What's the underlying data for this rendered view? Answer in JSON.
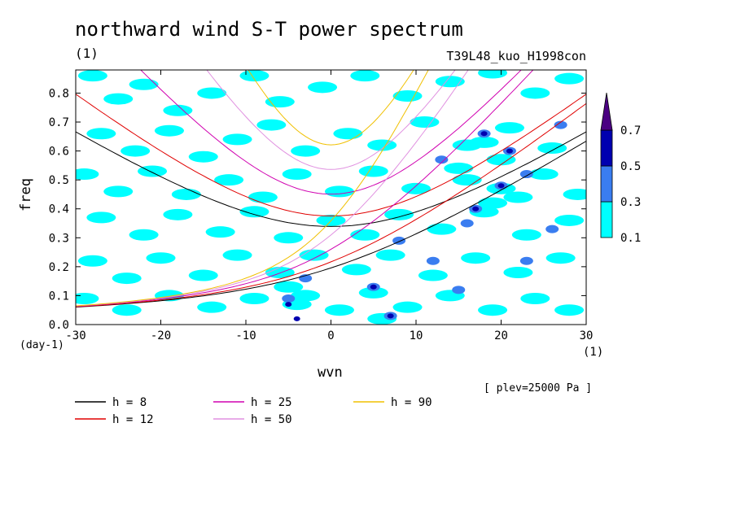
{
  "chart_data": {
    "type": "heatmap",
    "title": "northward wind S-T power spectrum",
    "subtitle": "T39L48_kuo_H1998con",
    "units_label": "(1)",
    "xlabel": "wvn",
    "ylabel": "freq",
    "x_unit": "(1)",
    "y_unit": "(day-1)",
    "annotation": "[ plev=25000 Pa ]",
    "xlim": [
      -30,
      30
    ],
    "ylim": [
      0,
      0.88
    ],
    "x_ticks": [
      -30,
      -20,
      -10,
      0,
      10,
      20,
      30
    ],
    "x_tick_labels": [
      "-30",
      "-20",
      "-10",
      "0",
      "10",
      "20",
      "30"
    ],
    "y_ticks": [
      0,
      0.1,
      0.2,
      0.3,
      0.4,
      0.5,
      0.6,
      0.7,
      0.8
    ],
    "y_tick_labels": [
      "0.0",
      "0.1",
      "0.2",
      "0.3",
      "0.4",
      "0.5",
      "0.6",
      "0.7",
      "0.8"
    ],
    "colorbar": {
      "levels": [
        0.1,
        0.3,
        0.5,
        0.7
      ],
      "labels": [
        "0.1",
        "0.3",
        "0.5",
        "0.7"
      ],
      "colors": [
        "#00ffff",
        "#3a7df0",
        "#0000b0",
        "#4b0082"
      ]
    },
    "dispersion_curves": [
      {
        "name": "h =  8",
        "h": 8,
        "color": "#000000"
      },
      {
        "name": "h = 12",
        "h": 12,
        "color": "#e00000"
      },
      {
        "name": "h = 25",
        "h": 25,
        "color": "#d000b0"
      },
      {
        "name": "h = 50",
        "h": 50,
        "color": "#e090e0"
      },
      {
        "name": "h = 90",
        "h": 90,
        "color": "#f0c000"
      }
    ],
    "spectral_blobs": [
      {
        "x": -28,
        "y": 0.86,
        "level": 1
      },
      {
        "x": -25,
        "y": 0.78,
        "level": 1
      },
      {
        "x": -22,
        "y": 0.83,
        "level": 1
      },
      {
        "x": -18,
        "y": 0.74,
        "level": 1
      },
      {
        "x": -14,
        "y": 0.8,
        "level": 1
      },
      {
        "x": -9,
        "y": 0.86,
        "level": 1
      },
      {
        "x": -6,
        "y": 0.77,
        "level": 1
      },
      {
        "x": -1,
        "y": 0.82,
        "level": 1
      },
      {
        "x": 4,
        "y": 0.86,
        "level": 1
      },
      {
        "x": 9,
        "y": 0.79,
        "level": 1
      },
      {
        "x": 14,
        "y": 0.84,
        "level": 1
      },
      {
        "x": 19,
        "y": 0.87,
        "level": 1
      },
      {
        "x": 24,
        "y": 0.8,
        "level": 1
      },
      {
        "x": 28,
        "y": 0.85,
        "level": 1
      },
      {
        "x": -27,
        "y": 0.66,
        "level": 1
      },
      {
        "x": -23,
        "y": 0.6,
        "level": 1
      },
      {
        "x": -19,
        "y": 0.67,
        "level": 1
      },
      {
        "x": -15,
        "y": 0.58,
        "level": 1
      },
      {
        "x": -11,
        "y": 0.64,
        "level": 1
      },
      {
        "x": -7,
        "y": 0.69,
        "level": 1
      },
      {
        "x": -3,
        "y": 0.6,
        "level": 1
      },
      {
        "x": 2,
        "y": 0.66,
        "level": 1
      },
      {
        "x": 6,
        "y": 0.62,
        "level": 1
      },
      {
        "x": 11,
        "y": 0.7,
        "level": 1
      },
      {
        "x": 16,
        "y": 0.62,
        "level": 1
      },
      {
        "x": 21,
        "y": 0.68,
        "level": 1
      },
      {
        "x": 26,
        "y": 0.61,
        "level": 1
      },
      {
        "x": -29,
        "y": 0.52,
        "level": 1
      },
      {
        "x": -25,
        "y": 0.46,
        "level": 1
      },
      {
        "x": -21,
        "y": 0.53,
        "level": 1
      },
      {
        "x": -17,
        "y": 0.45,
        "level": 1
      },
      {
        "x": -12,
        "y": 0.5,
        "level": 1
      },
      {
        "x": -8,
        "y": 0.44,
        "level": 1
      },
      {
        "x": -4,
        "y": 0.52,
        "level": 1
      },
      {
        "x": 1,
        "y": 0.46,
        "level": 1
      },
      {
        "x": 5,
        "y": 0.53,
        "level": 1
      },
      {
        "x": 10,
        "y": 0.47,
        "level": 1
      },
      {
        "x": 15,
        "y": 0.54,
        "level": 1
      },
      {
        "x": 20,
        "y": 0.47,
        "level": 1
      },
      {
        "x": 25,
        "y": 0.52,
        "level": 1
      },
      {
        "x": 29,
        "y": 0.45,
        "level": 1
      },
      {
        "x": -27,
        "y": 0.37,
        "level": 1
      },
      {
        "x": -22,
        "y": 0.31,
        "level": 1
      },
      {
        "x": -18,
        "y": 0.38,
        "level": 1
      },
      {
        "x": -13,
        "y": 0.32,
        "level": 1
      },
      {
        "x": -9,
        "y": 0.39,
        "level": 1
      },
      {
        "x": -5,
        "y": 0.3,
        "level": 1
      },
      {
        "x": 0,
        "y": 0.36,
        "level": 1
      },
      {
        "x": 4,
        "y": 0.31,
        "level": 1
      },
      {
        "x": 8,
        "y": 0.38,
        "level": 1
      },
      {
        "x": 13,
        "y": 0.33,
        "level": 1
      },
      {
        "x": 18,
        "y": 0.39,
        "level": 1
      },
      {
        "x": 23,
        "y": 0.31,
        "level": 1
      },
      {
        "x": 28,
        "y": 0.36,
        "level": 1
      },
      {
        "x": -28,
        "y": 0.22,
        "level": 1
      },
      {
        "x": -24,
        "y": 0.16,
        "level": 1
      },
      {
        "x": -20,
        "y": 0.23,
        "level": 1
      },
      {
        "x": -15,
        "y": 0.17,
        "level": 1
      },
      {
        "x": -11,
        "y": 0.24,
        "level": 1
      },
      {
        "x": -6,
        "y": 0.18,
        "level": 1
      },
      {
        "x": -2,
        "y": 0.24,
        "level": 1
      },
      {
        "x": 3,
        "y": 0.19,
        "level": 1
      },
      {
        "x": 7,
        "y": 0.24,
        "level": 1
      },
      {
        "x": 12,
        "y": 0.17,
        "level": 1
      },
      {
        "x": 17,
        "y": 0.23,
        "level": 1
      },
      {
        "x": 22,
        "y": 0.18,
        "level": 1
      },
      {
        "x": 27,
        "y": 0.23,
        "level": 1
      },
      {
        "x": -29,
        "y": 0.09,
        "level": 1
      },
      {
        "x": -24,
        "y": 0.05,
        "level": 1
      },
      {
        "x": -19,
        "y": 0.1,
        "level": 1
      },
      {
        "x": -14,
        "y": 0.06,
        "level": 1
      },
      {
        "x": -9,
        "y": 0.09,
        "level": 1
      },
      {
        "x": -4,
        "y": 0.07,
        "level": 1
      },
      {
        "x": 1,
        "y": 0.05,
        "level": 1
      },
      {
        "x": 5,
        "y": 0.11,
        "level": 1
      },
      {
        "x": 9,
        "y": 0.06,
        "level": 1
      },
      {
        "x": 14,
        "y": 0.1,
        "level": 1
      },
      {
        "x": 19,
        "y": 0.05,
        "level": 1
      },
      {
        "x": 24,
        "y": 0.09,
        "level": 1
      },
      {
        "x": 28,
        "y": 0.05,
        "level": 1
      },
      {
        "x": -5,
        "y": 0.13,
        "level": 1
      },
      {
        "x": -3,
        "y": 0.1,
        "level": 1
      },
      {
        "x": 6,
        "y": 0.02,
        "level": 1
      },
      {
        "x": 18,
        "y": 0.63,
        "level": 1
      },
      {
        "x": 20,
        "y": 0.57,
        "level": 1
      },
      {
        "x": 16,
        "y": 0.5,
        "level": 1
      },
      {
        "x": 22,
        "y": 0.44,
        "level": 1
      },
      {
        "x": 19,
        "y": 0.42,
        "level": 1
      },
      {
        "x": -5,
        "y": 0.09,
        "level": 2
      },
      {
        "x": 5,
        "y": 0.13,
        "level": 2
      },
      {
        "x": 7,
        "y": 0.03,
        "level": 2
      },
      {
        "x": 18,
        "y": 0.66,
        "level": 2
      },
      {
        "x": 21,
        "y": 0.6,
        "level": 2
      },
      {
        "x": 20,
        "y": 0.48,
        "level": 2
      },
      {
        "x": 17,
        "y": 0.4,
        "level": 2
      },
      {
        "x": 23,
        "y": 0.52,
        "level": 2
      },
      {
        "x": 16,
        "y": 0.35,
        "level": 2
      },
      {
        "x": 27,
        "y": 0.69,
        "level": 2
      },
      {
        "x": 13,
        "y": 0.57,
        "level": 2
      },
      {
        "x": 8,
        "y": 0.29,
        "level": 2
      },
      {
        "x": -3,
        "y": 0.16,
        "level": 2
      },
      {
        "x": 12,
        "y": 0.22,
        "level": 2
      },
      {
        "x": 26,
        "y": 0.33,
        "level": 2
      },
      {
        "x": 23,
        "y": 0.22,
        "level": 2
      },
      {
        "x": 15,
        "y": 0.12,
        "level": 2
      },
      {
        "x": -5,
        "y": 0.07,
        "level": 3
      },
      {
        "x": 5,
        "y": 0.13,
        "level": 3
      },
      {
        "x": 7,
        "y": 0.03,
        "level": 3
      },
      {
        "x": 21,
        "y": 0.6,
        "level": 3
      },
      {
        "x": 20,
        "y": 0.48,
        "level": 3
      },
      {
        "x": 18,
        "y": 0.66,
        "level": 3
      },
      {
        "x": -4,
        "y": 0.02,
        "level": 3
      },
      {
        "x": 17,
        "y": 0.4,
        "level": 3
      }
    ]
  }
}
